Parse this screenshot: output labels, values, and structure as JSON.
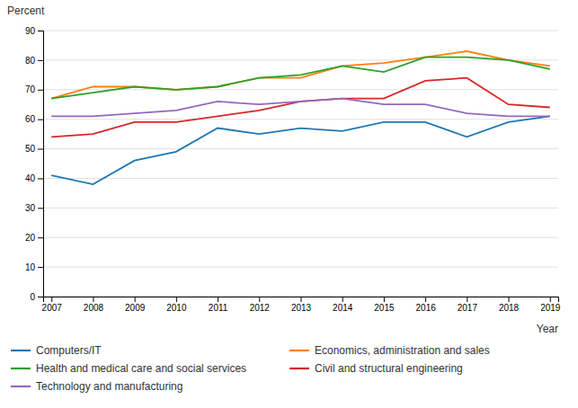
{
  "chart_data": {
    "type": "line",
    "x_label": "Year",
    "y_label": "Percent",
    "x": [
      2007,
      2008,
      2009,
      2010,
      2011,
      2012,
      2013,
      2014,
      2015,
      2016,
      2017,
      2018,
      2019
    ],
    "series": [
      {
        "name": "Computers/IT",
        "values": [
          41,
          38,
          46,
          49,
          57,
          55,
          57,
          56,
          59,
          59,
          54,
          59,
          61
        ]
      },
      {
        "name": "Economics, administration and sales",
        "values": [
          67,
          71,
          71,
          70,
          71,
          74,
          74,
          78,
          79,
          81,
          83,
          80,
          78
        ]
      },
      {
        "name": "Health and medical care and social services",
        "values": [
          67,
          69,
          71,
          70,
          71,
          74,
          75,
          78,
          76,
          81,
          81,
          80,
          77
        ]
      },
      {
        "name": "Civil and structural engineering",
        "values": [
          54,
          55,
          59,
          59,
          61,
          63,
          66,
          67,
          67,
          73,
          74,
          65,
          64
        ]
      },
      {
        "name": "Technology and manufacturing",
        "values": [
          61,
          61,
          62,
          63,
          66,
          65,
          66,
          67,
          65,
          65,
          62,
          61,
          61
        ]
      }
    ],
    "xlim": [
      2006.8,
      2019.2
    ],
    "xticks": [
      2007,
      2008,
      2009,
      2010,
      2011,
      2012,
      2013,
      2014,
      2015,
      2016,
      2017,
      2018,
      2019
    ],
    "ylim": [
      0,
      90
    ],
    "yticks": [
      0,
      10,
      20,
      30,
      40,
      50,
      60,
      70,
      80,
      90
    ],
    "grid": true,
    "legend": "bottom"
  }
}
